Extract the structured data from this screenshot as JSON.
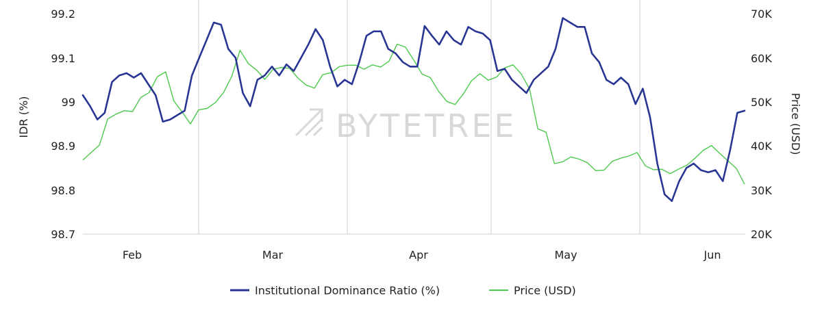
{
  "chart_data": {
    "type": "line",
    "watermark": "BYTETREE",
    "xlabel": "",
    "x_ticks": [
      "Feb",
      "Mar",
      "Apr",
      "May",
      "Jun"
    ],
    "y_left": {
      "label": "IDR (%)",
      "min": 98.7,
      "max": 99.2,
      "ticks": [
        "99.2",
        "99.1",
        "99",
        "98.9",
        "98.8",
        "98.7"
      ]
    },
    "y_right": {
      "label": "Price (USD)",
      "min": 20000,
      "max": 70000,
      "ticks": [
        "70K",
        "60K",
        "50K",
        "40K",
        "30K",
        "20K"
      ]
    },
    "grid": "vertical",
    "legend_position": "bottom",
    "series": [
      {
        "name": "Institutional Dominance Ratio (%)",
        "axis": "left",
        "color": "#283593",
        "values": [
          99.015,
          98.99,
          98.96,
          98.975,
          99.045,
          99.06,
          99.065,
          99.055,
          99.065,
          99.04,
          99.015,
          98.955,
          98.96,
          98.97,
          98.98,
          99.06,
          99.1,
          99.14,
          99.18,
          99.175,
          99.12,
          99.1,
          99.02,
          98.99,
          99.05,
          99.06,
          99.08,
          99.06,
          99.085,
          99.07,
          99.1,
          99.13,
          99.165,
          99.14,
          99.08,
          99.035,
          99.05,
          99.04,
          99.09,
          99.15,
          99.16,
          99.16,
          99.12,
          99.11,
          99.09,
          99.08,
          99.08,
          99.172,
          99.15,
          99.13,
          99.16,
          99.14,
          99.13,
          99.17,
          99.16,
          99.155,
          99.14,
          99.07,
          99.075,
          99.05,
          99.035,
          99.02,
          99.05,
          99.065,
          99.08,
          99.12,
          99.19,
          99.18,
          99.17,
          99.17,
          99.11,
          99.09,
          99.05,
          99.04,
          99.055,
          99.04,
          98.995,
          99.03,
          98.965,
          98.86,
          98.79,
          98.775,
          98.82,
          98.85,
          98.86,
          98.845,
          98.84,
          98.845,
          98.82,
          98.89,
          98.975,
          98.98
        ]
      },
      {
        "name": "Price (USD)",
        "axis": "right",
        "color": "#4cc94c",
        "values": [
          36800,
          38500,
          40200,
          46100,
          47200,
          48000,
          47800,
          51000,
          52100,
          55700,
          56800,
          50200,
          47700,
          45000,
          48200,
          48500,
          49800,
          52100,
          55800,
          61700,
          58700,
          57200,
          55100,
          57400,
          57800,
          57600,
          55400,
          53800,
          53100,
          56200,
          56600,
          58000,
          58300,
          58300,
          57400,
          58400,
          57900,
          59200,
          63100,
          62400,
          59500,
          56300,
          55500,
          52400,
          50100,
          49400,
          51800,
          54800,
          56400,
          54900,
          55600,
          57700,
          58400,
          56300,
          52900,
          43900,
          43100,
          36000,
          36400,
          37500,
          37000,
          36200,
          34400,
          34500,
          36500,
          37200,
          37700,
          38500,
          35500,
          34600,
          34700,
          33700,
          34700,
          35600,
          37200,
          39000,
          40100,
          38300,
          36600,
          34900,
          31300
        ]
      }
    ]
  },
  "legend": {
    "item1_label": "Institutional Dominance Ratio (%)",
    "item2_label": "Price (USD)"
  }
}
